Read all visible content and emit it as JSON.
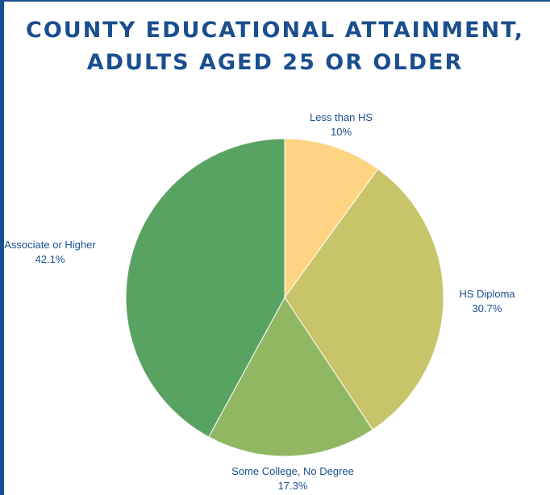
{
  "colors": {
    "frame_border": "#1a4f8f",
    "title_text": "#1a4f8f",
    "label_text": "#1a4f8f"
  },
  "chart_data": {
    "type": "pie",
    "title_lines": [
      "COUNTY EDUCATIONAL ATTAINMENT,",
      "ADULTS AGED 25 OR OLDER"
    ],
    "legend": "none",
    "data_labels": "outside",
    "start_angle_deg": 0,
    "direction": "clockwise",
    "slices": [
      {
        "name": "Less than HS",
        "value": 10,
        "label": "10%",
        "color": "#fed482"
      },
      {
        "name": "HS Diploma",
        "value": 30.7,
        "label": "30.7%",
        "color": "#c8c46a"
      },
      {
        "name": "Some College, No Degree",
        "value": 17.3,
        "label": "17.3%",
        "color": "#92b762"
      },
      {
        "name": "Associate or Higher",
        "value": 42.1,
        "label": "42.1%",
        "color": "#58a362"
      }
    ]
  }
}
